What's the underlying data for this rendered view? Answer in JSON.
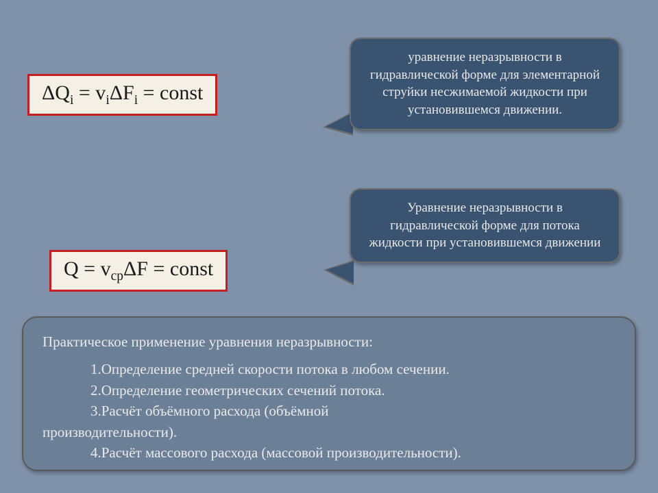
{
  "colors": {
    "page_bg": "#7f92a9",
    "equation_bg": "#f5f0e6",
    "equation_border": "#c41e1e",
    "equation_text": "#1a1a1a",
    "callout_bg": "#3a5370",
    "callout_border": "#6b6b6b",
    "callout_text": "#e8e8e8",
    "panel_bg": "#6b7f97",
    "panel_border": "#5a5a5a",
    "panel_text": "#eaeaea"
  },
  "equation1": {
    "prefix": "ΔQ",
    "sub1": "i",
    "eq1": " = v",
    "sub2": "i",
    "mid": "ΔF",
    "sub3": "i",
    "suffix": " = const"
  },
  "equation2": {
    "prefix": "Q = v",
    "sub1": "ср",
    "mid": "ΔF = const"
  },
  "callout1": "уравнение неразрывности в гидравлической форме для элементарной струйки несжимаемой жидкости при установившемся движении.",
  "callout2": "Уравнение неразрывности в гидравлической форме для потока  жидкости при установившемся движении",
  "bottom": {
    "title": "Практическое применение уравнения неразрывности:",
    "item1": "1.Определение средней скорости потока в любом сечении.",
    "item2": "2.Определение геометрических сечений потока.",
    "item3a": "3.Расчёт объёмного расхода (объёмной",
    "item3b": "производительности).",
    "item4": "4.Расчёт массового расхода (массовой производительности)."
  }
}
